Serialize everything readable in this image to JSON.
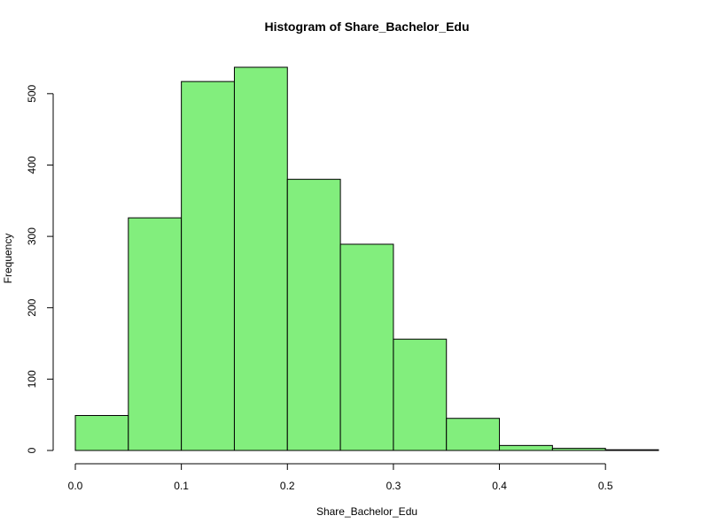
{
  "chart_data": {
    "type": "bar",
    "title": "Histogram of Share_Bachelor_Edu",
    "xlabel": "Share_Bachelor_Edu",
    "ylabel": "Frequency",
    "bins": [
      {
        "start": 0.0,
        "end": 0.05,
        "count": 49
      },
      {
        "start": 0.05,
        "end": 0.1,
        "count": 326
      },
      {
        "start": 0.1,
        "end": 0.15,
        "count": 517
      },
      {
        "start": 0.15,
        "end": 0.2,
        "count": 537
      },
      {
        "start": 0.2,
        "end": 0.25,
        "count": 380
      },
      {
        "start": 0.25,
        "end": 0.3,
        "count": 289
      },
      {
        "start": 0.3,
        "end": 0.35,
        "count": 156
      },
      {
        "start": 0.35,
        "end": 0.4,
        "count": 45
      },
      {
        "start": 0.4,
        "end": 0.45,
        "count": 7
      },
      {
        "start": 0.45,
        "end": 0.5,
        "count": 3
      },
      {
        "start": 0.5,
        "end": 0.55,
        "count": 1
      }
    ],
    "xlim": [
      0,
      0.55
    ],
    "ylim": [
      0,
      537
    ],
    "xticks": [
      0.0,
      0.1,
      0.2,
      0.3,
      0.4,
      0.5
    ],
    "xtick_labels": [
      "0.0",
      "0.1",
      "0.2",
      "0.3",
      "0.4",
      "0.5"
    ],
    "yticks": [
      0,
      100,
      200,
      300,
      400,
      500
    ],
    "ytick_labels": [
      "0",
      "100",
      "200",
      "300",
      "400",
      "500"
    ],
    "bar_color": "#82ee7d",
    "grid": false,
    "legend": "none"
  }
}
